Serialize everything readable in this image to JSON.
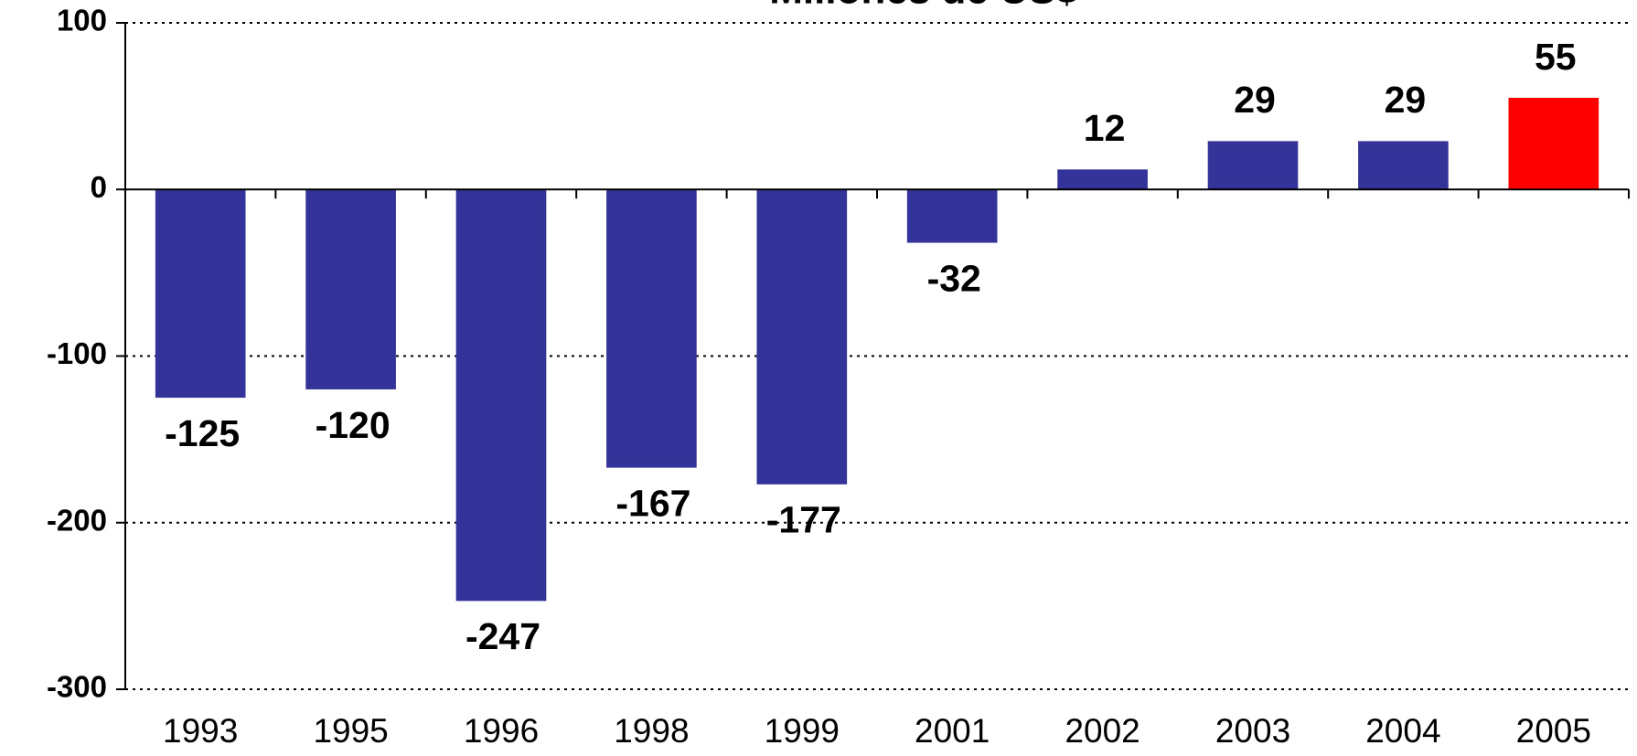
{
  "chart_data": {
    "type": "bar",
    "title": "Millones de US$",
    "categories": [
      "1993",
      "1995",
      "1996",
      "1998",
      "1999",
      "2001",
      "2002",
      "2003",
      "2004",
      "2005"
    ],
    "values": [
      -125,
      -120,
      -247,
      -167,
      -177,
      -32,
      12,
      29,
      29,
      55
    ],
    "colors": [
      "#333399",
      "#333399",
      "#333399",
      "#333399",
      "#333399",
      "#333399",
      "#333399",
      "#333399",
      "#333399",
      "#ff0000"
    ],
    "ylim": [
      -300,
      100
    ],
    "yticks": [
      -300,
      -200,
      -100,
      0,
      100
    ],
    "grid": true
  }
}
